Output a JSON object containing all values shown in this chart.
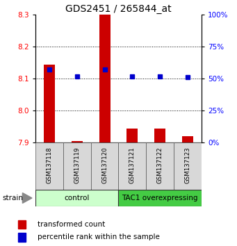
{
  "title": "GDS2451 / 265844_at",
  "samples": [
    "GSM137118",
    "GSM137119",
    "GSM137120",
    "GSM137121",
    "GSM137122",
    "GSM137123"
  ],
  "transformed_count": [
    8.145,
    7.905,
    8.3,
    7.945,
    7.945,
    7.92
  ],
  "percentile_rank": [
    57,
    52,
    57,
    52,
    52,
    51
  ],
  "ylim_left": [
    7.9,
    8.3
  ],
  "ylim_right": [
    0,
    100
  ],
  "yticks_left": [
    7.9,
    8.0,
    8.1,
    8.2,
    8.3
  ],
  "yticks_right": [
    0,
    25,
    50,
    75,
    100
  ],
  "bar_color": "#cc0000",
  "dot_color": "#0000cc",
  "bar_width": 0.4,
  "group_bg_color_control": "#ccffcc",
  "group_bg_color_tac1": "#44cc44",
  "legend_items": [
    "transformed count",
    "percentile rank within the sample"
  ],
  "title_fontsize": 10,
  "tick_fontsize": 7.5
}
